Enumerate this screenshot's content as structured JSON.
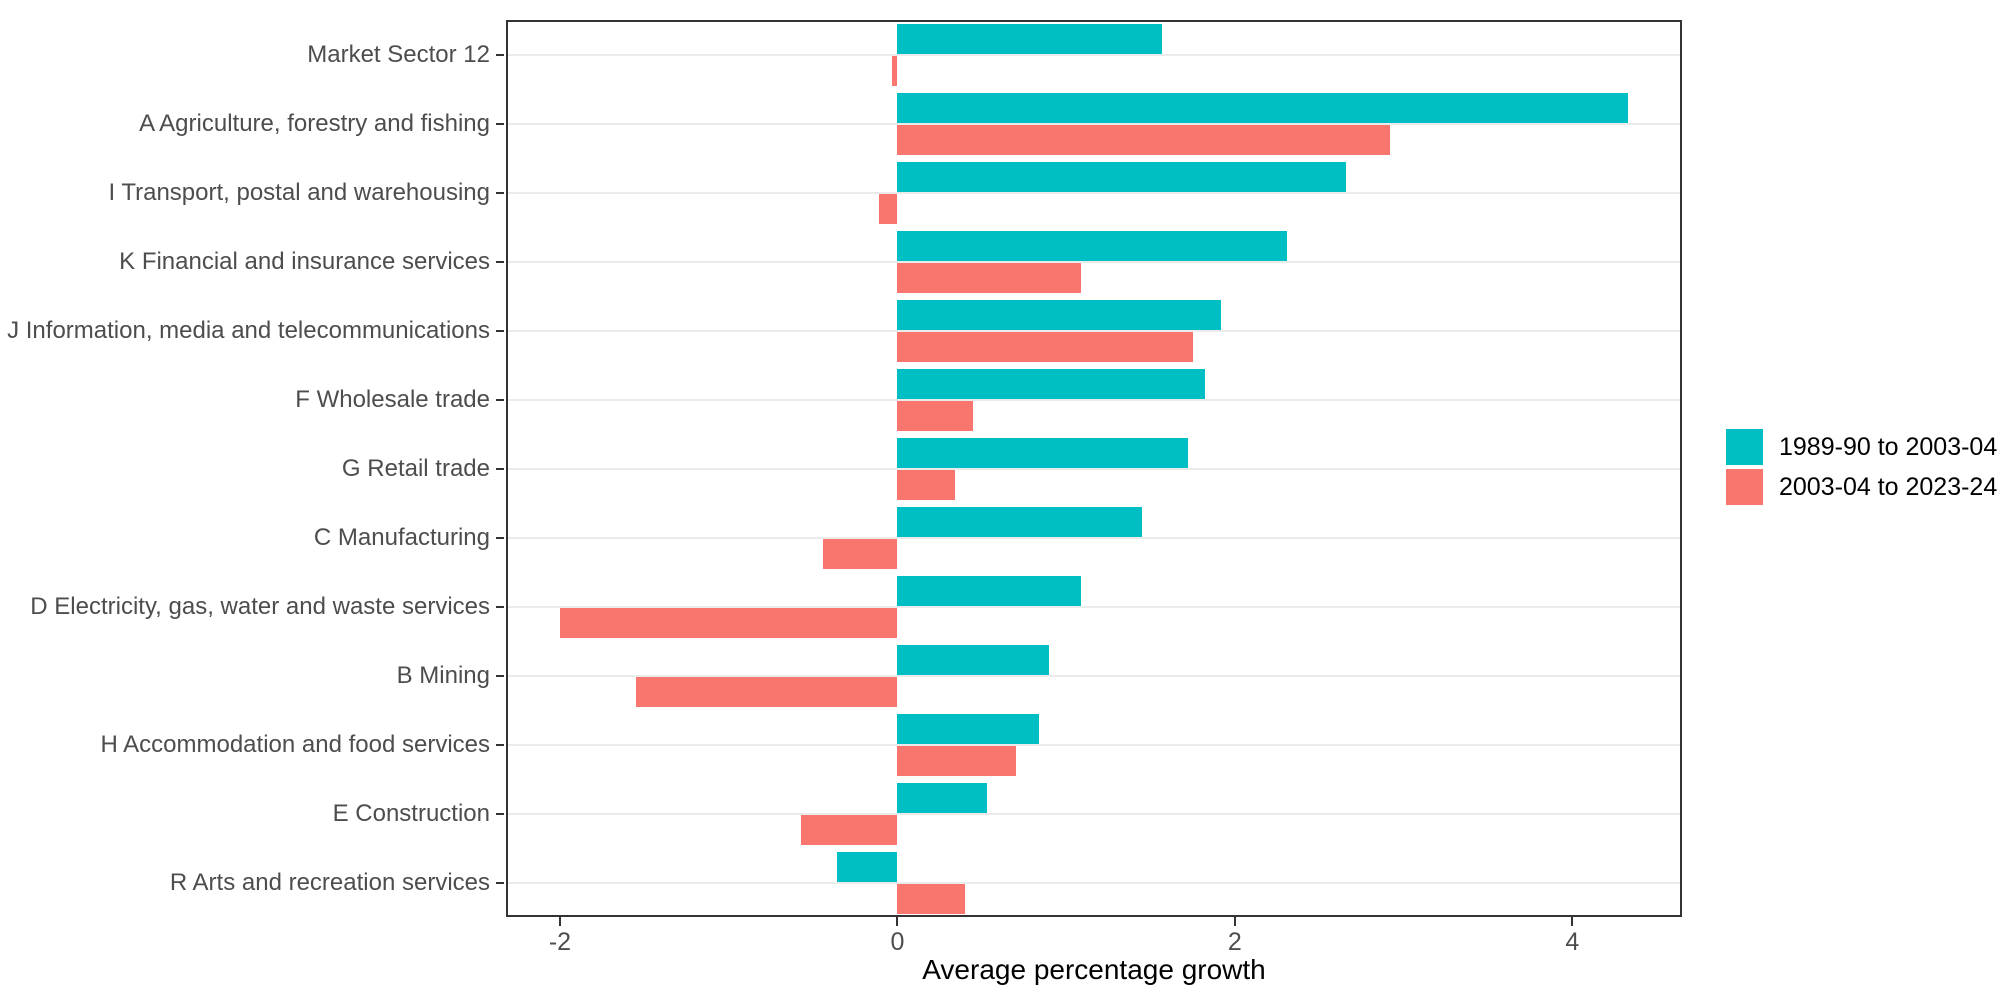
{
  "chart_data": {
    "type": "bar",
    "orientation": "horizontal",
    "title": "",
    "xlabel": "Average percentage growth",
    "ylabel": "",
    "categories": [
      "Market Sector 12",
      "A Agriculture, forestry and fishing",
      "I Transport, postal and warehousing",
      "K Financial and insurance services",
      "J Information, media and telecommunications",
      "F Wholesale trade",
      "G Retail trade",
      "C Manufacturing",
      "D Electricity, gas, water and waste services",
      "B Mining",
      "H Accommodation and food services",
      "E Construction",
      "R Arts and recreation services"
    ],
    "series": [
      {
        "name": "1989-90 to 2003-04",
        "color": "#00BFC4",
        "values": [
          1.57,
          4.33,
          2.66,
          2.31,
          1.92,
          1.82,
          1.72,
          1.45,
          1.09,
          0.9,
          0.84,
          0.53,
          -0.36
        ]
      },
      {
        "name": "2003-04 to 2023-24",
        "color": "#F8766D",
        "values": [
          -0.03,
          2.92,
          -0.11,
          1.09,
          1.75,
          0.45,
          0.34,
          -0.44,
          -2.0,
          -1.55,
          0.7,
          -0.57,
          0.4
        ]
      }
    ],
    "x_ticks": [
      -2,
      0,
      2,
      4
    ],
    "x_tick_labels": [
      "-2",
      "0",
      "2",
      "4"
    ],
    "xlim": [
      -2.32,
      4.65
    ],
    "grid": "horizontal-major-only",
    "legend_position": "right",
    "panel_border_color": "#333333",
    "gridline_color": "#EBEBEB",
    "axis_text_color": "#4D4D4D",
    "axis_title_color": "#000000",
    "background_color": "#FFFFFF"
  }
}
